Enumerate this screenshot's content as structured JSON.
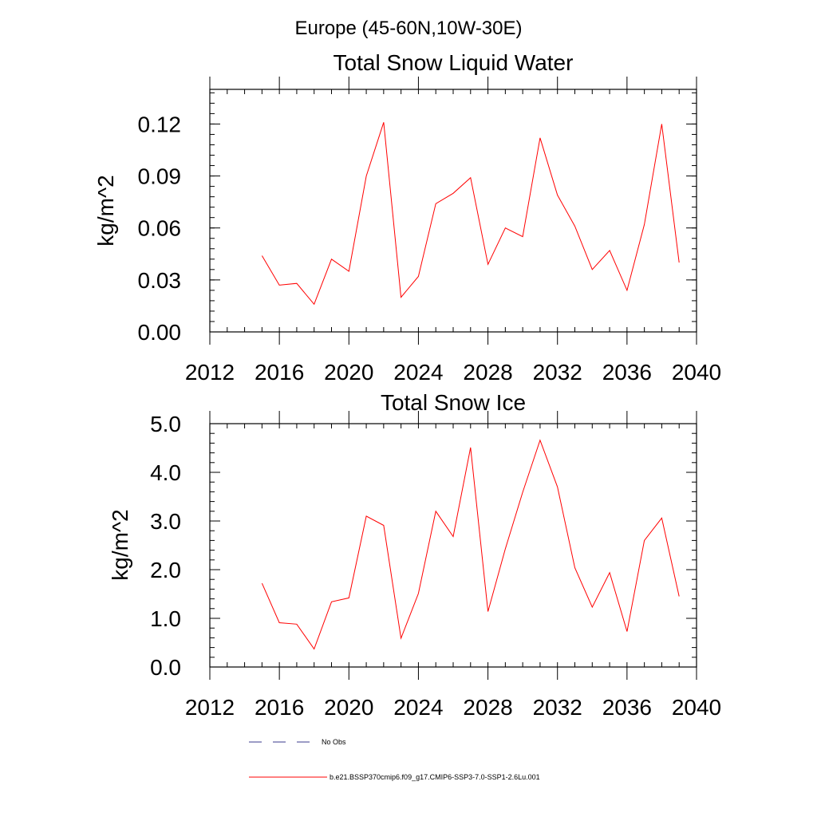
{
  "suptitle": "Europe (45-60N,10W-30E)",
  "colors": {
    "model": "#ff0000",
    "obs": "#3a3a8c",
    "axis": "#000000"
  },
  "legend": {
    "obs_label": "No Obs",
    "model_label": "b.e21.BSSP370cmip6.f09_g17.CMIP6-SSP3-7.0-SSP1-2.6Lu.001"
  },
  "chart_data": [
    {
      "type": "line",
      "title": "Total Snow Liquid Water",
      "xlabel": "",
      "ylabel": "kg/m^2",
      "xlim": [
        2012,
        2040
      ],
      "ylim": [
        0,
        0.14
      ],
      "xticks": [
        2012,
        2016,
        2020,
        2024,
        2028,
        2032,
        2036,
        2040
      ],
      "xtick_labels": [
        "2012",
        "2016",
        "2020",
        "2024",
        "2028",
        "2032",
        "2036",
        "2040"
      ],
      "yticks": [
        0,
        0.03,
        0.06,
        0.09,
        0.12
      ],
      "ytick_labels": [
        "0.00",
        "0.03",
        "0.06",
        "0.09",
        "0.12"
      ],
      "yminor_step": 0.006,
      "xminor_step": 1,
      "grid": false,
      "x": [
        2015,
        2016,
        2017,
        2018,
        2019,
        2020,
        2021,
        2022,
        2023,
        2024,
        2025,
        2026,
        2027,
        2028,
        2029,
        2030,
        2031,
        2032,
        2033,
        2034,
        2035,
        2036,
        2037,
        2038,
        2039
      ],
      "series": [
        {
          "name": "b.e21.BSSP370cmip6.f09_g17.CMIP6-SSP3-7.0-SSP1-2.6Lu.001",
          "values": [
            0.044,
            0.027,
            0.028,
            0.016,
            0.042,
            0.035,
            0.09,
            0.121,
            0.02,
            0.032,
            0.074,
            0.08,
            0.089,
            0.039,
            0.06,
            0.055,
            0.112,
            0.079,
            0.061,
            0.036,
            0.047,
            0.024,
            0.062,
            0.12,
            0.04
          ]
        }
      ]
    },
    {
      "type": "line",
      "title": "Total Snow Ice",
      "xlabel": "",
      "ylabel": "kg/m^2",
      "xlim": [
        2012,
        2040
      ],
      "ylim": [
        0,
        5
      ],
      "xticks": [
        2012,
        2016,
        2020,
        2024,
        2028,
        2032,
        2036,
        2040
      ],
      "xtick_labels": [
        "2012",
        "2016",
        "2020",
        "2024",
        "2028",
        "2032",
        "2036",
        "2040"
      ],
      "yticks": [
        0,
        1,
        2,
        3,
        4,
        5
      ],
      "ytick_labels": [
        "0.0",
        "1.0",
        "2.0",
        "3.0",
        "4.0",
        "5.0"
      ],
      "yminor_step": 0.2,
      "xminor_step": 1,
      "grid": false,
      "x": [
        2015,
        2016,
        2017,
        2018,
        2019,
        2020,
        2021,
        2022,
        2023,
        2024,
        2025,
        2026,
        2027,
        2028,
        2029,
        2030,
        2031,
        2032,
        2033,
        2034,
        2035,
        2036,
        2037,
        2038,
        2039
      ],
      "series": [
        {
          "name": "b.e21.BSSP370cmip6.f09_g17.CMIP6-SSP3-7.0-SSP1-2.6Lu.001",
          "values": [
            1.72,
            0.91,
            0.88,
            0.37,
            1.34,
            1.42,
            3.1,
            2.91,
            0.59,
            1.51,
            3.2,
            2.68,
            4.51,
            1.14,
            2.43,
            3.59,
            4.66,
            3.7,
            2.04,
            1.23,
            1.94,
            0.73,
            2.6,
            3.06,
            1.45
          ]
        }
      ]
    }
  ]
}
